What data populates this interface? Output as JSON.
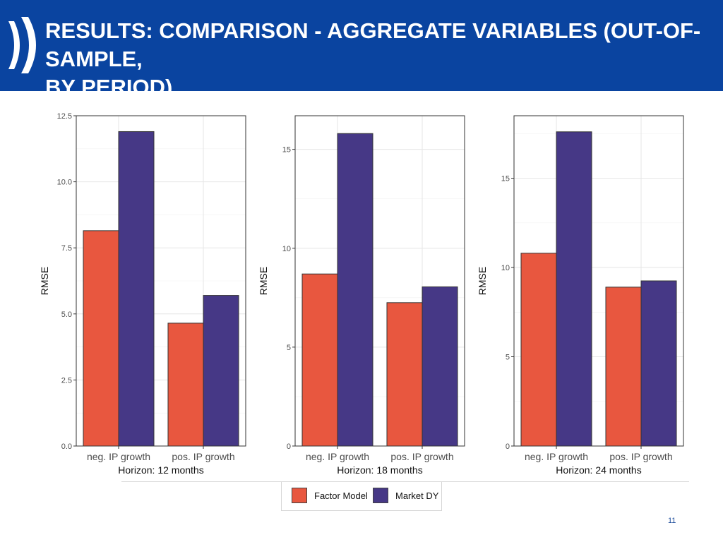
{
  "slide": {
    "title_line1": "RESULTS: COMPARISON - AGGREGATE VARIABLES (OUT-OF-SAMPLE,",
    "title_line2": "BY PERIOD)",
    "page_number": "11"
  },
  "colors": {
    "header": "#0a44a0",
    "factor": "#e8573f",
    "market": "#463886"
  },
  "legend": {
    "items": [
      "Factor Model",
      "Market DY"
    ]
  },
  "chart_data": [
    {
      "type": "bar",
      "ylabel": "RMSE",
      "xtitle": "Horizon: 12 months",
      "categories": [
        "neg. IP growth",
        "pos. IP growth"
      ],
      "series": [
        {
          "name": "Factor Model",
          "values": [
            8.15,
            4.65
          ]
        },
        {
          "name": "Market DY",
          "values": [
            11.9,
            5.7
          ]
        }
      ],
      "ylim": [
        0,
        12.5
      ],
      "yticks": [
        0,
        2.5,
        5,
        7.5,
        10,
        12.5
      ],
      "ytick_labels": [
        "0.0",
        "2.5",
        "5.0",
        "7.5",
        "10.0",
        "12.5"
      ]
    },
    {
      "type": "bar",
      "ylabel": "RMSE",
      "xtitle": "Horizon: 18 months",
      "categories": [
        "neg. IP growth",
        "pos. IP growth"
      ],
      "series": [
        {
          "name": "Factor Model",
          "values": [
            8.7,
            7.25
          ]
        },
        {
          "name": "Market DY",
          "values": [
            15.8,
            8.05
          ]
        }
      ],
      "ylim": [
        0,
        16.7
      ],
      "yticks": [
        0,
        5,
        10,
        15
      ],
      "ytick_labels": [
        "0",
        "5",
        "10",
        "15"
      ]
    },
    {
      "type": "bar",
      "ylabel": "RMSE",
      "xtitle": "Horizon: 24 months",
      "categories": [
        "neg. IP growth",
        "pos. IP growth"
      ],
      "series": [
        {
          "name": "Factor Model",
          "values": [
            10.8,
            8.9
          ]
        },
        {
          "name": "Market DY",
          "values": [
            17.6,
            9.25
          ]
        }
      ],
      "ylim": [
        0,
        18.5
      ],
      "yticks": [
        0,
        5,
        10,
        15
      ],
      "ytick_labels": [
        "0",
        "5",
        "10",
        "15"
      ]
    }
  ]
}
